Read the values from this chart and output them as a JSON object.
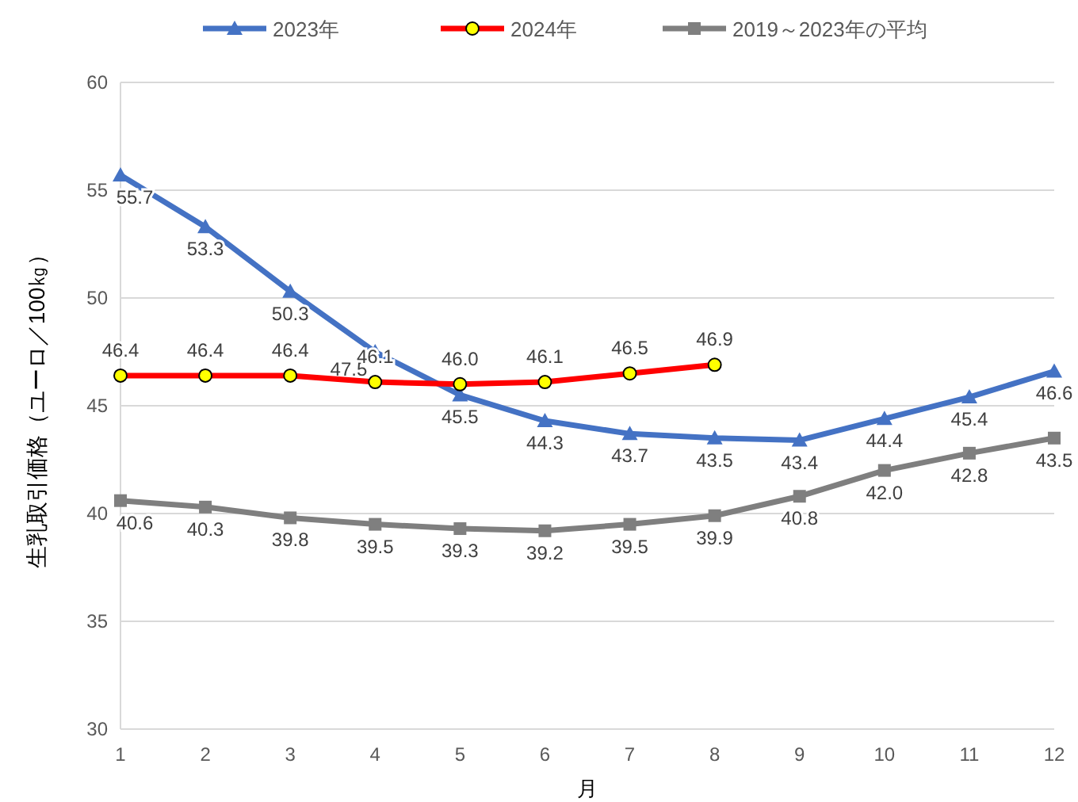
{
  "chart_data": {
    "type": "line",
    "xlabel": "月",
    "ylabel": "生乳取引価格（ユーロ／100㎏）",
    "x": [
      1,
      2,
      3,
      4,
      5,
      6,
      7,
      8,
      9,
      10,
      11,
      12
    ],
    "xlim": [
      1,
      12
    ],
    "xticks": [
      1,
      2,
      3,
      4,
      5,
      6,
      7,
      8,
      9,
      10,
      11,
      12
    ],
    "ylim": [
      30,
      60
    ],
    "yticks": [
      30,
      35,
      40,
      45,
      50,
      55,
      60
    ],
    "grid": "y",
    "legend": "top",
    "series": [
      {
        "name": "2023年",
        "color": "#4472c4",
        "marker": "triangle",
        "values": [
          55.7,
          53.3,
          50.3,
          47.5,
          45.5,
          44.3,
          43.7,
          43.5,
          43.4,
          44.4,
          45.4,
          46.6
        ],
        "value_labels": [
          "55.7",
          "53.3",
          "50.3",
          "47.5",
          "45.5",
          "44.3",
          "43.7",
          "43.5",
          "43.4",
          "44.4",
          "45.4",
          "46.6"
        ]
      },
      {
        "name": "2024年",
        "color": "#ff0000",
        "marker": "circle",
        "values": [
          46.4,
          46.4,
          46.4,
          46.1,
          46.0,
          46.1,
          46.5,
          46.9,
          null,
          null,
          null,
          null
        ],
        "value_labels": [
          "46.4",
          "46.4",
          "46.4",
          "46.1",
          "46.0",
          "46.1",
          "46.5",
          "46.9",
          null,
          null,
          null,
          null
        ]
      },
      {
        "name": "2019～2023年の平均",
        "color": "#7f7f7f",
        "marker": "square",
        "values": [
          40.6,
          40.3,
          39.8,
          39.5,
          39.3,
          39.2,
          39.5,
          39.9,
          40.8,
          42.0,
          42.8,
          43.5
        ],
        "value_labels": [
          "40.6",
          "40.3",
          "39.8",
          "39.5",
          "39.3",
          "39.2",
          "39.5",
          "39.9",
          "40.8",
          "42.0",
          "42.8",
          "43.5"
        ]
      }
    ]
  }
}
